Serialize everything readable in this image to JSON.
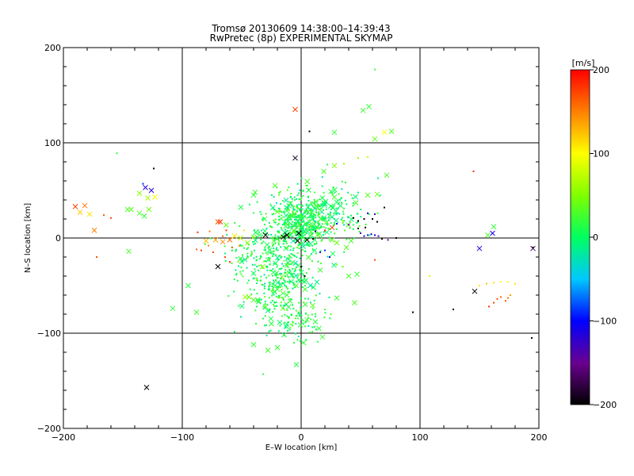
{
  "chart_data": {
    "type": "scatter",
    "title": "Tromsø 20130609 14:38:00–14:39:43",
    "subtitle": "RwPretec (8p) EXPERIMENTAL SKYMAP",
    "xlabel": "E–W location [km]",
    "ylabel": "N–S location [km]",
    "xlim": [
      -200,
      200
    ],
    "ylim": [
      -200,
      200
    ],
    "xticks": [
      -200,
      -100,
      0,
      100,
      200
    ],
    "yticks": [
      -200,
      -100,
      0,
      100,
      200
    ],
    "xtick_labels": [
      "−200",
      "−100",
      "0",
      "100",
      "200"
    ],
    "ytick_labels": [
      "−200",
      "−100",
      "0",
      "100",
      "200"
    ],
    "grid": true,
    "grid_lines": [
      -100,
      0,
      100
    ],
    "colorbar": {
      "label": "[m/s]",
      "min": -200,
      "max": 200,
      "ticks": [
        200,
        100,
        0,
        -100,
        -200
      ],
      "tick_labels": [
        "200",
        "100",
        "0",
        "−100",
        "−200"
      ]
    },
    "marker_types": [
      "x",
      "dot"
    ],
    "points": [
      [
        -5,
        135,
        175,
        "x"
      ],
      [
        57,
        138,
        20,
        "x"
      ],
      [
        52,
        134,
        25,
        "x"
      ],
      [
        28,
        111,
        22,
        "x"
      ],
      [
        70,
        111,
        100,
        "x"
      ],
      [
        76,
        112,
        35,
        "x"
      ],
      [
        62,
        104,
        40,
        "x"
      ],
      [
        7,
        112,
        -200,
        "d"
      ],
      [
        62,
        177,
        20,
        "d"
      ],
      [
        -5,
        84,
        -190,
        "x"
      ],
      [
        -155,
        89,
        15,
        "d"
      ],
      [
        -124,
        73,
        -200,
        "d"
      ],
      [
        -190,
        33,
        175,
        "x"
      ],
      [
        -182,
        34,
        155,
        "x"
      ],
      [
        -186,
        27,
        120,
        "x"
      ],
      [
        -178,
        25,
        110,
        "x"
      ],
      [
        -174,
        8,
        150,
        "x"
      ],
      [
        -166,
        24,
        170,
        "d"
      ],
      [
        -160,
        21,
        175,
        "d"
      ],
      [
        -172,
        -20,
        170,
        "d"
      ],
      [
        -146,
        30,
        30,
        "x"
      ],
      [
        -143,
        30,
        35,
        "x"
      ],
      [
        -136,
        26,
        30,
        "x"
      ],
      [
        -132,
        23,
        20,
        "x"
      ],
      [
        -136,
        47,
        55,
        "x"
      ],
      [
        -129,
        42,
        65,
        "x"
      ],
      [
        -131,
        53,
        -120,
        "x"
      ],
      [
        -126,
        50,
        -120,
        "x"
      ],
      [
        -133,
        57,
        -90,
        "d"
      ],
      [
        -128,
        30,
        45,
        "x"
      ],
      [
        -123,
        43,
        100,
        "x"
      ],
      [
        -145,
        -14,
        30,
        "x"
      ],
      [
        -108,
        -74,
        20,
        "x"
      ],
      [
        -95,
        -50,
        15,
        "x"
      ],
      [
        -88,
        -78,
        25,
        "x"
      ],
      [
        -130,
        -157,
        -200,
        "x"
      ],
      [
        -70,
        17,
        170,
        "x"
      ],
      [
        -68,
        17,
        180,
        "x"
      ],
      [
        -77,
        7,
        150,
        "d"
      ],
      [
        -87,
        6,
        185,
        "d"
      ],
      [
        -80,
        -3,
        125,
        "x"
      ],
      [
        -72,
        -2,
        135,
        "x"
      ],
      [
        -66,
        -4,
        145,
        "x"
      ],
      [
        -60,
        -2,
        155,
        "x"
      ],
      [
        -56,
        2,
        110,
        "x"
      ],
      [
        -51,
        0,
        70,
        "x"
      ],
      [
        -45,
        -5,
        60,
        "x"
      ],
      [
        -40,
        1,
        50,
        "x"
      ],
      [
        -35,
        3,
        20,
        "x"
      ],
      [
        -30,
        3,
        -200,
        "x"
      ],
      [
        -66,
        2,
        160,
        "d"
      ],
      [
        -63,
        8,
        180,
        "d"
      ],
      [
        -58,
        -10,
        160,
        "d"
      ],
      [
        -52,
        -8,
        145,
        "d"
      ],
      [
        -48,
        8,
        110,
        "d"
      ],
      [
        -70,
        -30,
        -200,
        "x"
      ],
      [
        -64,
        -20,
        170,
        "d"
      ],
      [
        -60,
        -25,
        175,
        "d"
      ],
      [
        -74,
        -15,
        170,
        "d"
      ],
      [
        -78,
        -8,
        150,
        "d"
      ],
      [
        -84,
        -13,
        180,
        "d"
      ],
      [
        -88,
        -12,
        160,
        "d"
      ],
      [
        -53,
        -25,
        60,
        "d"
      ],
      [
        -46,
        -22,
        30,
        "d"
      ],
      [
        -47,
        -62,
        60,
        "x"
      ],
      [
        -44,
        -62,
        45,
        "x"
      ],
      [
        -40,
        -65,
        30,
        "x"
      ],
      [
        -36,
        -67,
        20,
        "x"
      ],
      [
        -40,
        45,
        20,
        "x"
      ],
      [
        -22,
        55,
        30,
        "x"
      ],
      [
        -8,
        24,
        30,
        "x"
      ],
      [
        -2,
        5,
        -200,
        "x"
      ],
      [
        -3,
        -3,
        -200,
        "x"
      ],
      [
        5,
        -2,
        -200,
        "x"
      ],
      [
        -15,
        1,
        -200,
        "x"
      ],
      [
        -12,
        3,
        -200,
        "x"
      ],
      [
        10,
        -1,
        -200,
        "d"
      ],
      [
        12,
        7,
        -200,
        "d"
      ],
      [
        0,
        -30,
        -200,
        "d"
      ],
      [
        3,
        -40,
        -200,
        "d"
      ],
      [
        -40,
        -112,
        20,
        "x"
      ],
      [
        -28,
        -118,
        25,
        "x"
      ],
      [
        -25,
        -90,
        15,
        "x"
      ],
      [
        -20,
        -115,
        20,
        "x"
      ],
      [
        -4,
        -133,
        15,
        "x"
      ],
      [
        2,
        -110,
        20,
        "x"
      ],
      [
        5,
        -86,
        25,
        "x"
      ],
      [
        12,
        -88,
        15,
        "x"
      ],
      [
        15,
        -95,
        20,
        "x"
      ],
      [
        18,
        -104,
        25,
        "x"
      ],
      [
        -32,
        -143,
        20,
        "d"
      ],
      [
        -6,
        -110,
        15,
        "d"
      ],
      [
        -30,
        -72,
        30,
        "x"
      ],
      [
        -20,
        -54,
        25,
        "x"
      ],
      [
        -12,
        -60,
        20,
        "x"
      ],
      [
        30,
        -63,
        25,
        "x"
      ],
      [
        45,
        -68,
        30,
        "x"
      ],
      [
        20,
        -75,
        30,
        "d"
      ],
      [
        25,
        -80,
        35,
        "d"
      ],
      [
        -38,
        -90,
        20,
        "d"
      ],
      [
        19,
        70,
        30,
        "x"
      ],
      [
        28,
        76,
        50,
        "x"
      ],
      [
        36,
        78,
        60,
        "d"
      ],
      [
        48,
        84,
        60,
        "d"
      ],
      [
        56,
        85,
        80,
        "d"
      ],
      [
        28,
        43,
        30,
        "x"
      ],
      [
        46,
        37,
        30,
        "x"
      ],
      [
        56,
        45,
        35,
        "x"
      ],
      [
        64,
        46,
        40,
        "x"
      ],
      [
        72,
        66,
        30,
        "x"
      ],
      [
        56,
        26,
        -110,
        "d"
      ],
      [
        62,
        25,
        -130,
        "d"
      ],
      [
        70,
        32,
        -200,
        "d"
      ],
      [
        44,
        21,
        -200,
        "d"
      ],
      [
        48,
        18,
        -200,
        "d"
      ],
      [
        53,
        20,
        -200,
        "d"
      ],
      [
        60,
        20,
        -200,
        "d"
      ],
      [
        64,
        17,
        -200,
        "d"
      ],
      [
        48,
        10,
        -200,
        "d"
      ],
      [
        54,
        11,
        -200,
        "d"
      ],
      [
        40,
        14,
        -150,
        "d"
      ],
      [
        30,
        15,
        -100,
        "d"
      ],
      [
        35,
        18,
        60,
        "d"
      ],
      [
        26,
        11,
        175,
        "x"
      ],
      [
        20,
        8,
        185,
        "d"
      ],
      [
        50,
        5,
        -130,
        "d"
      ],
      [
        53,
        2,
        -120,
        "d"
      ],
      [
        56,
        3,
        -90,
        "d"
      ],
      [
        59,
        4,
        -120,
        "d"
      ],
      [
        62,
        3,
        -110,
        "d"
      ],
      [
        65,
        2,
        -130,
        "d"
      ],
      [
        68,
        -1,
        -200,
        "d"
      ],
      [
        73,
        -2,
        -150,
        "d"
      ],
      [
        80,
        0,
        -200,
        "d"
      ],
      [
        42,
        -3,
        30,
        "x"
      ],
      [
        38,
        -10,
        35,
        "x"
      ],
      [
        30,
        -5,
        40,
        "x"
      ],
      [
        26,
        -2,
        35,
        "x"
      ],
      [
        20,
        -13,
        -90,
        "d"
      ],
      [
        16,
        -15,
        -120,
        "d"
      ],
      [
        24,
        -20,
        -110,
        "d"
      ],
      [
        40,
        -40,
        30,
        "x"
      ],
      [
        47,
        -38,
        20,
        "x"
      ],
      [
        62,
        -23,
        170,
        "d"
      ],
      [
        30,
        -28,
        40,
        "d"
      ],
      [
        35,
        -30,
        30,
        "d"
      ],
      [
        145,
        70,
        180,
        "d"
      ],
      [
        108,
        -40,
        90,
        "d"
      ],
      [
        94,
        -78,
        -200,
        "d"
      ],
      [
        128,
        -75,
        -200,
        "d"
      ],
      [
        146,
        -56,
        -200,
        "x"
      ],
      [
        150,
        -11,
        -120,
        "x"
      ],
      [
        157,
        3,
        30,
        "x"
      ],
      [
        161,
        5,
        -110,
        "x"
      ],
      [
        162,
        12,
        20,
        "x"
      ],
      [
        195,
        -10,
        -200,
        "d"
      ],
      [
        195,
        -11,
        -170,
        "x"
      ],
      [
        194,
        -105,
        -200,
        "d"
      ],
      [
        150,
        -50,
        110,
        "d"
      ],
      [
        156,
        -48,
        125,
        "d"
      ],
      [
        162,
        -47,
        110,
        "d"
      ],
      [
        168,
        -46,
        100,
        "d"
      ],
      [
        174,
        -46,
        100,
        "d"
      ],
      [
        180,
        -48,
        110,
        "d"
      ],
      [
        162,
        -68,
        175,
        "d"
      ],
      [
        165,
        -64,
        170,
        "d"
      ],
      [
        168,
        -62,
        160,
        "d"
      ],
      [
        172,
        -66,
        165,
        "d"
      ],
      [
        174,
        -63,
        155,
        "d"
      ],
      [
        158,
        -72,
        180,
        "d"
      ],
      [
        176,
        -60,
        140,
        "d"
      ]
    ]
  }
}
